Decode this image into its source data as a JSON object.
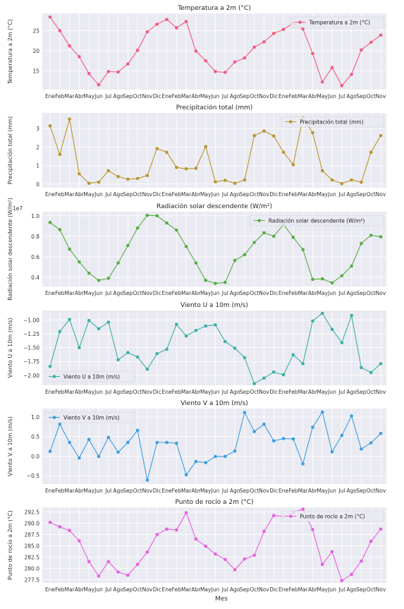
{
  "figure": {
    "xlabel": "Mes"
  },
  "chart_data": [
    {
      "type": "line",
      "title": "Temperatura a 2m (°C)",
      "ylabel": "Temperatura a 2m (°C)",
      "legend": "top-right",
      "color": "#f15b80",
      "ylim": [
        10.3,
        29.3
      ],
      "yticks": [
        15,
        20,
        25
      ],
      "yticklabels": [
        "15",
        "20",
        "25"
      ],
      "series": [
        {
          "name": "Temperatura a 2m (°C)",
          "values": [
            28.4,
            25.0,
            21.2,
            18.5,
            14.3,
            11.5,
            14.8,
            14.7,
            16.7,
            20.1,
            24.7,
            26.6,
            27.8,
            25.7,
            27.3,
            19.9,
            17.5,
            14.8,
            14.6,
            17.2,
            18.2,
            20.9,
            22.2,
            24.3,
            25.3,
            26.9,
            25.4,
            19.3,
            12.2,
            15.8,
            11.3,
            14.1,
            20.2,
            22.1,
            23.9
          ]
        }
      ]
    },
    {
      "type": "line",
      "title": "Precipitación total (mm)",
      "ylabel": "Precipitación total (mm)",
      "legend": "top-right",
      "color": "#b8962c",
      "ylim": [
        -0.2,
        3.85
      ],
      "yticks": [
        0,
        1,
        2,
        3
      ],
      "yticklabels": [
        "0",
        "1",
        "2",
        "3"
      ],
      "series": [
        {
          "name": "Precipitación total (mm)",
          "values": [
            3.15,
            1.6,
            3.52,
            0.55,
            0.04,
            0.1,
            0.72,
            0.4,
            0.26,
            0.3,
            0.46,
            1.92,
            1.72,
            0.9,
            0.82,
            0.85,
            2.03,
            0.12,
            0.2,
            0.04,
            0.22,
            2.62,
            2.87,
            2.6,
            1.72,
            1.05,
            3.6,
            2.78,
            0.72,
            0.22,
            0.02,
            0.22,
            0.1,
            1.72,
            2.62
          ]
        }
      ]
    },
    {
      "type": "line",
      "title": "Radiación solar descendente (W/m²)",
      "ylabel": "Radiación solar descendente (W/m²)",
      "legend": "top-right",
      "color": "#55ad43",
      "exponent": "1e7",
      "ylim": [
        3100000,
        10400000
      ],
      "yticks": [
        4000000,
        6000000,
        8000000,
        10000000
      ],
      "yticklabels": [
        "0.4",
        "0.6",
        "0.8",
        "1.0"
      ],
      "series": [
        {
          "name": "Radiación solar descendente (W/m²)",
          "values": [
            9350000,
            8650000,
            6750000,
            5500000,
            4400000,
            3700000,
            3900000,
            5400000,
            7100000,
            8800000,
            10050000,
            10000000,
            9300000,
            8600000,
            7000000,
            5400000,
            3700000,
            3400000,
            3500000,
            5650000,
            6200000,
            7400000,
            8350000,
            8000000,
            9150000,
            7900000,
            6700000,
            3800000,
            3850000,
            3450000,
            4150000,
            5100000,
            7300000,
            8100000,
            7950000
          ]
        }
      ]
    },
    {
      "type": "line",
      "title": "Viento U a 10m (m/s)",
      "ylabel": "Viento U a 10m (m/s)",
      "legend": "bottom-left",
      "color": "#3ab0a5",
      "ylim": [
        -2.18,
        -0.83
      ],
      "yticks": [
        -2.0,
        -1.75,
        -1.5,
        -1.25,
        -1.0
      ],
      "yticklabels": [
        "−2.00",
        "−1.75",
        "−1.50",
        "−1.25",
        "−1.00"
      ],
      "series": [
        {
          "name": "Viento U a 10m (m/s)",
          "values": [
            -1.84,
            -1.21,
            -0.99,
            -1.5,
            -1.01,
            -1.16,
            -1.04,
            -1.72,
            -1.59,
            -1.67,
            -1.89,
            -1.61,
            -1.53,
            -1.08,
            -1.29,
            -1.19,
            -1.11,
            -1.09,
            -1.39,
            -1.51,
            -1.68,
            -2.15,
            -2.05,
            -1.94,
            -1.99,
            -1.63,
            -1.79,
            -1.02,
            -0.88,
            -1.17,
            -1.41,
            -0.92,
            -1.86,
            -1.95,
            -1.79
          ]
        }
      ]
    },
    {
      "type": "line",
      "title": "Viento V a 10m (m/s)",
      "ylabel": "Viento V a 10m (m/s)",
      "legend": "top-left",
      "color": "#3a9fe0",
      "ylim": [
        -0.72,
        1.22
      ],
      "yticks": [
        -0.5,
        0.0,
        0.5,
        1.0
      ],
      "yticklabels": [
        "−0.5",
        "0.0",
        "0.5",
        "1.0"
      ],
      "series": [
        {
          "name": "Viento V a 10m (m/s)",
          "values": [
            0.12,
            0.82,
            0.35,
            -0.05,
            0.43,
            -0.01,
            0.48,
            0.1,
            0.35,
            0.66,
            -0.62,
            0.35,
            0.35,
            0.33,
            -0.48,
            -0.14,
            -0.17,
            -0.01,
            -0.01,
            0.13,
            1.12,
            0.63,
            0.82,
            0.39,
            0.45,
            0.44,
            -0.2,
            0.74,
            1.13,
            0.11,
            0.53,
            1.03,
            0.18,
            0.34,
            0.58
          ]
        }
      ]
    },
    {
      "type": "line",
      "title": "Punto de rocío a 2m (°C)",
      "ylabel": "Punto de rocío a 2m (°C)",
      "legend": "top-right",
      "color": "#e85ee0",
      "ylim": [
        276.8,
        293.5
      ],
      "yticks": [
        277.5,
        280.0,
        282.5,
        285.0,
        287.5,
        290.0,
        292.5
      ],
      "yticklabels": [
        "277.5",
        "280.0",
        "282.5",
        "285.0",
        "287.5",
        "290.0",
        "292.5"
      ],
      "series": [
        {
          "name": "Punto de rocío a 2m (°C)",
          "values": [
            290.2,
            289.2,
            288.4,
            286.1,
            281.5,
            278.3,
            281.5,
            279.2,
            278.5,
            280.9,
            283.6,
            287.5,
            288.7,
            288.5,
            292.3,
            286.5,
            284.9,
            283.2,
            282.0,
            279.7,
            282.1,
            282.9,
            288.2,
            291.7,
            291.5,
            292.4,
            293.1,
            288.6,
            280.9,
            283.7,
            277.3,
            278.7,
            281.6,
            286.0,
            288.7
          ]
        }
      ]
    }
  ],
  "x_ticks": [
    "Ene",
    "Feb",
    "Mar",
    "Abr",
    "May",
    "Jun",
    "Jul",
    "Ago",
    "Sep",
    "Oct",
    "Nov",
    "Dic",
    "Ene",
    "Feb",
    "Mar",
    "Abr",
    "May",
    "Jun",
    "Jul",
    "Ago",
    "Sep",
    "Oct",
    "Nov",
    "Dic",
    "Ene",
    "Feb",
    "Mar",
    "Abr",
    "May",
    "Jun",
    "Jul",
    "Ago",
    "Sep",
    "Oct",
    "Nov"
  ]
}
